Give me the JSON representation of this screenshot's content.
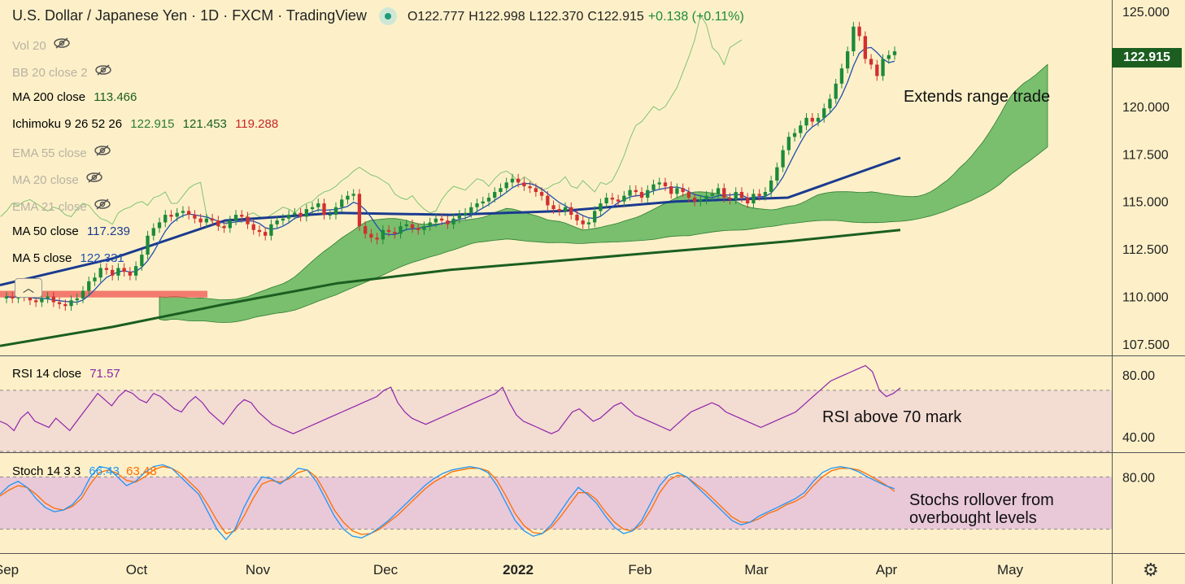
{
  "header": {
    "symbol": "U.S. Dollar / Japanese Yen",
    "interval": "1D",
    "exchange": "FXCM",
    "source": "TradingView",
    "open": "O122.777",
    "high": "H122.998",
    "low": "L122.370",
    "close": "C122.915",
    "change": "+0.138 (+0.11%)"
  },
  "indicators": {
    "vol": "Vol 20",
    "bb": "BB 20 close 2",
    "ma200": {
      "label": "MA 200 close",
      "value": "113.466"
    },
    "ichimoku": {
      "label": "Ichimoku 9 26 52 26",
      "v1": "122.915",
      "v2": "121.453",
      "v3": "119.288"
    },
    "ema55": "EMA 55 close",
    "ma20": "MA 20 close",
    "ema21": "EMA 21 close",
    "ma50": {
      "label": "MA 50 close",
      "value": "117.239"
    },
    "ma5": {
      "label": "MA 5 close",
      "value": "122.331"
    },
    "rsi": {
      "label": "RSI 14 close",
      "value": "71.57"
    },
    "stoch": {
      "label": "Stoch 14 3 3",
      "k": "66.43",
      "d": "63.48"
    }
  },
  "annotations": {
    "range": "Extends range trade",
    "rsi": "RSI above 70 mark",
    "stoch": "Stochs rollover from overbought levels"
  },
  "last_price": "122.915",
  "icons": [
    "eye-off-icon",
    "chevron-up-icon",
    "gear-icon"
  ],
  "colors": {
    "background": "#fdf0c8",
    "up_candle": "#1b8a3a",
    "down_candle": "#d32f2f",
    "ma50": "#1a3a8f",
    "ma200": "#1b5e20",
    "ma5": "#1f4fb0",
    "cloud_bull": "#4caf50",
    "cloud_bear": "#ef5350",
    "rsi": "#8e24aa",
    "stoch_k": "#2196f3",
    "stoch_d": "#ff6d00"
  },
  "chart_data": [
    {
      "type": "candlestick",
      "title": "U.S. Dollar / Japanese Yen · 1D · FXCM",
      "x_ticks": [
        "Sep",
        "Oct",
        "Nov",
        "Dec",
        "2022",
        "Feb",
        "Mar",
        "Apr",
        "May"
      ],
      "y_ticks": [
        "125.000",
        "122.500",
        "120.000",
        "117.500",
        "115.000",
        "112.500",
        "110.000",
        "107.500"
      ],
      "ylim": [
        106.9,
        125.6
      ],
      "series": [
        {
          "name": "Close",
          "values": [
            110.0,
            109.9,
            110.1,
            110.0,
            109.8,
            109.7,
            109.9,
            110.0,
            109.7,
            109.6,
            109.5,
            109.8,
            109.9,
            110.3,
            110.8,
            111.0,
            111.5,
            111.4,
            111.1,
            111.5,
            111.3,
            111.1,
            111.6,
            112.2,
            113.2,
            113.6,
            113.9,
            114.3,
            114.2,
            114.4,
            114.5,
            114.3,
            114.1,
            113.9,
            114.1,
            114.0,
            113.7,
            113.6,
            114.0,
            114.3,
            114.2,
            113.8,
            113.5,
            113.4,
            113.2,
            113.8,
            114.0,
            114.1,
            114.3,
            114.4,
            114.2,
            114.6,
            114.7,
            114.9,
            114.3,
            114.3,
            114.7,
            115.1,
            115.3,
            115.4,
            113.7,
            113.3,
            113.1,
            113.0,
            113.5,
            113.4,
            113.3,
            113.7,
            113.8,
            113.6,
            113.5,
            113.7,
            113.9,
            114.1,
            114.0,
            113.8,
            114.1,
            114.3,
            114.4,
            114.7,
            114.9,
            115.0,
            115.2,
            115.5,
            115.7,
            116.0,
            116.2,
            116.0,
            115.8,
            115.7,
            115.5,
            115.3,
            114.8,
            114.6,
            114.5,
            114.7,
            114.3,
            114.0,
            113.8,
            113.9,
            114.5,
            114.9,
            115.2,
            115.1,
            115.0,
            115.3,
            115.6,
            115.5,
            115.2,
            115.6,
            115.9,
            116.0,
            115.8,
            115.4,
            115.7,
            115.5,
            115.2,
            115.0,
            115.1,
            115.3,
            115.4,
            115.7,
            115.2,
            115.1,
            115.5,
            115.2,
            114.9,
            115.4,
            115.3,
            115.5,
            116.1,
            116.8,
            117.7,
            118.4,
            118.6,
            119.0,
            119.4,
            119.2,
            119.4,
            119.9,
            120.4,
            121.2,
            122.0,
            122.9,
            124.2,
            123.7,
            122.5,
            122.2,
            121.6,
            122.5,
            122.7,
            122.9
          ]
        },
        {
          "name": "MA 50",
          "values": [
            110.6,
            112.0,
            114.0,
            114.4,
            114.3,
            114.5,
            115.0,
            115.2,
            117.3
          ]
        },
        {
          "name": "MA 200",
          "values": [
            107.4,
            108.4,
            109.6,
            110.7,
            111.4,
            111.9,
            112.4,
            112.9,
            113.5
          ]
        }
      ]
    },
    {
      "type": "line",
      "title": "RSI 14 close",
      "y_ticks": [
        "80.00",
        "40.00"
      ],
      "ylim": [
        30,
        92
      ],
      "band": [
        30,
        70
      ],
      "series": [
        {
          "name": "RSI",
          "values": [
            50,
            48,
            44,
            52,
            56,
            50,
            48,
            46,
            52,
            48,
            44,
            50,
            56,
            62,
            68,
            64,
            60,
            66,
            70,
            68,
            64,
            62,
            68,
            66,
            62,
            58,
            56,
            62,
            66,
            62,
            56,
            52,
            48,
            54,
            60,
            64,
            62,
            56,
            52,
            48,
            46,
            44,
            42,
            44,
            46,
            48,
            50,
            52,
            54,
            56,
            58,
            60,
            62,
            64,
            66,
            70,
            72,
            62,
            56,
            52,
            50,
            48,
            50,
            52,
            54,
            56,
            58,
            60,
            62,
            64,
            66,
            68,
            72,
            62,
            54,
            50,
            48,
            46,
            44,
            42,
            44,
            50,
            56,
            58,
            54,
            50,
            52,
            56,
            60,
            62,
            58,
            54,
            52,
            50,
            48,
            46,
            44,
            48,
            52,
            56,
            58,
            60,
            62,
            60,
            56,
            54,
            52,
            50,
            48,
            46,
            48,
            50,
            52,
            54,
            56,
            60,
            64,
            68,
            72,
            76,
            78,
            80,
            82,
            84,
            86,
            82,
            70,
            66,
            68,
            71.57
          ]
        }
      ]
    },
    {
      "type": "line",
      "title": "Stoch 14 3 3",
      "y_ticks": [
        "80.00"
      ],
      "ylim": [
        0,
        100
      ],
      "band": [
        20,
        80
      ],
      "series": [
        {
          "name": "%K",
          "values": [
            60,
            70,
            75,
            68,
            55,
            45,
            40,
            42,
            48,
            60,
            80,
            92,
            90,
            80,
            70,
            75,
            85,
            92,
            94,
            90,
            80,
            70,
            60,
            40,
            20,
            8,
            20,
            45,
            65,
            80,
            78,
            72,
            80,
            90,
            88,
            75,
            55,
            35,
            20,
            12,
            10,
            15,
            22,
            30,
            40,
            50,
            60,
            70,
            78,
            84,
            88,
            90,
            92,
            90,
            85,
            70,
            50,
            30,
            18,
            12,
            15,
            25,
            40,
            55,
            68,
            60,
            50,
            35,
            22,
            15,
            18,
            30,
            50,
            70,
            82,
            85,
            80,
            70,
            60,
            50,
            40,
            30,
            25,
            28,
            35,
            40,
            45,
            50,
            55,
            62,
            75,
            85,
            90,
            92,
            90,
            86,
            80,
            75,
            70,
            66.43
          ]
        },
        {
          "name": "%D",
          "values": [
            58,
            65,
            70,
            68,
            60,
            50,
            44,
            42,
            46,
            55,
            72,
            85,
            88,
            84,
            76,
            74,
            80,
            88,
            92,
            90,
            84,
            74,
            64,
            48,
            30,
            15,
            18,
            35,
            55,
            72,
            76,
            74,
            78,
            85,
            88,
            80,
            62,
            42,
            28,
            18,
            14,
            15,
            20,
            28,
            36,
            46,
            56,
            66,
            74,
            80,
            86,
            88,
            90,
            90,
            87,
            76,
            58,
            38,
            24,
            16,
            15,
            22,
            34,
            48,
            62,
            62,
            54,
            40,
            28,
            20,
            18,
            26,
            42,
            62,
            76,
            82,
            80,
            72,
            64,
            54,
            44,
            34,
            28,
            28,
            32,
            38,
            42,
            48,
            52,
            58,
            70,
            80,
            87,
            90,
            90,
            88,
            83,
            77,
            71,
            63.48
          ]
        }
      ]
    }
  ]
}
